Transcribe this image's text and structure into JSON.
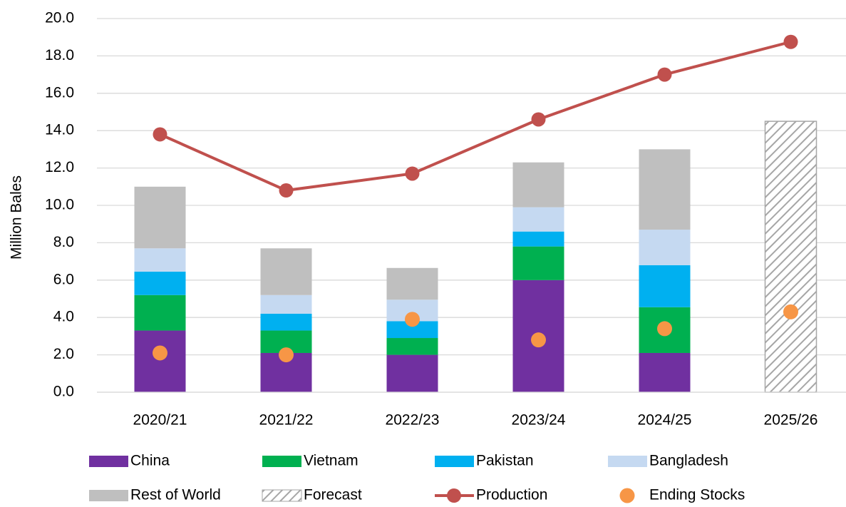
{
  "chart_data": {
    "type": "bar",
    "stacked": true,
    "y_label": "Million Bales",
    "categories": [
      "2020/21",
      "2021/22",
      "2022/23",
      "2023/24",
      "2024/25",
      "2025/26"
    ],
    "series": [
      {
        "name": "China",
        "color": "#7030a0",
        "values": [
          3.3,
          2.1,
          2.0,
          6.0,
          2.1,
          null
        ]
      },
      {
        "name": "Vietnam",
        "color": "#00b050",
        "values": [
          1.9,
          1.2,
          0.9,
          1.8,
          2.45,
          null
        ]
      },
      {
        "name": "Pakistan",
        "color": "#00b0f0",
        "values": [
          1.25,
          0.9,
          0.9,
          0.8,
          2.25,
          null
        ]
      },
      {
        "name": "Bangladesh",
        "color": "#c5d9f1",
        "values": [
          1.25,
          1.0,
          1.15,
          1.3,
          1.9,
          null
        ]
      },
      {
        "name": "Rest of World",
        "color": "#bfbfbf",
        "values": [
          3.3,
          2.5,
          1.7,
          2.4,
          4.3,
          null
        ]
      },
      {
        "name": "Forecast",
        "color": "#a6a6a6",
        "hatched": true,
        "values": [
          null,
          null,
          null,
          null,
          null,
          14.5
        ]
      },
      {
        "name": "Production",
        "type": "line",
        "color": "#c0504d",
        "values": [
          13.8,
          10.8,
          11.7,
          14.6,
          17.0,
          18.75
        ]
      },
      {
        "name": "Ending Stocks",
        "type": "scatter",
        "color": "#f79646",
        "values": [
          2.1,
          2.0,
          3.9,
          2.8,
          3.4,
          4.3
        ]
      }
    ],
    "ylim": [
      0,
      20
    ],
    "yticks": [
      {
        "value": 0,
        "label": "0.0"
      },
      {
        "value": 2,
        "label": "2.0"
      },
      {
        "value": 4,
        "label": "4.0"
      },
      {
        "value": 6,
        "label": "6.0"
      },
      {
        "value": 8,
        "label": "8.0"
      },
      {
        "value": 10,
        "label": "10.0"
      },
      {
        "value": 12,
        "label": "12.0"
      },
      {
        "value": 14,
        "label": "14.0"
      },
      {
        "value": 16,
        "label": "16.0"
      },
      {
        "value": 18,
        "label": "18.0"
      },
      {
        "value": 20,
        "label": "20.0"
      }
    ],
    "grid": true
  }
}
